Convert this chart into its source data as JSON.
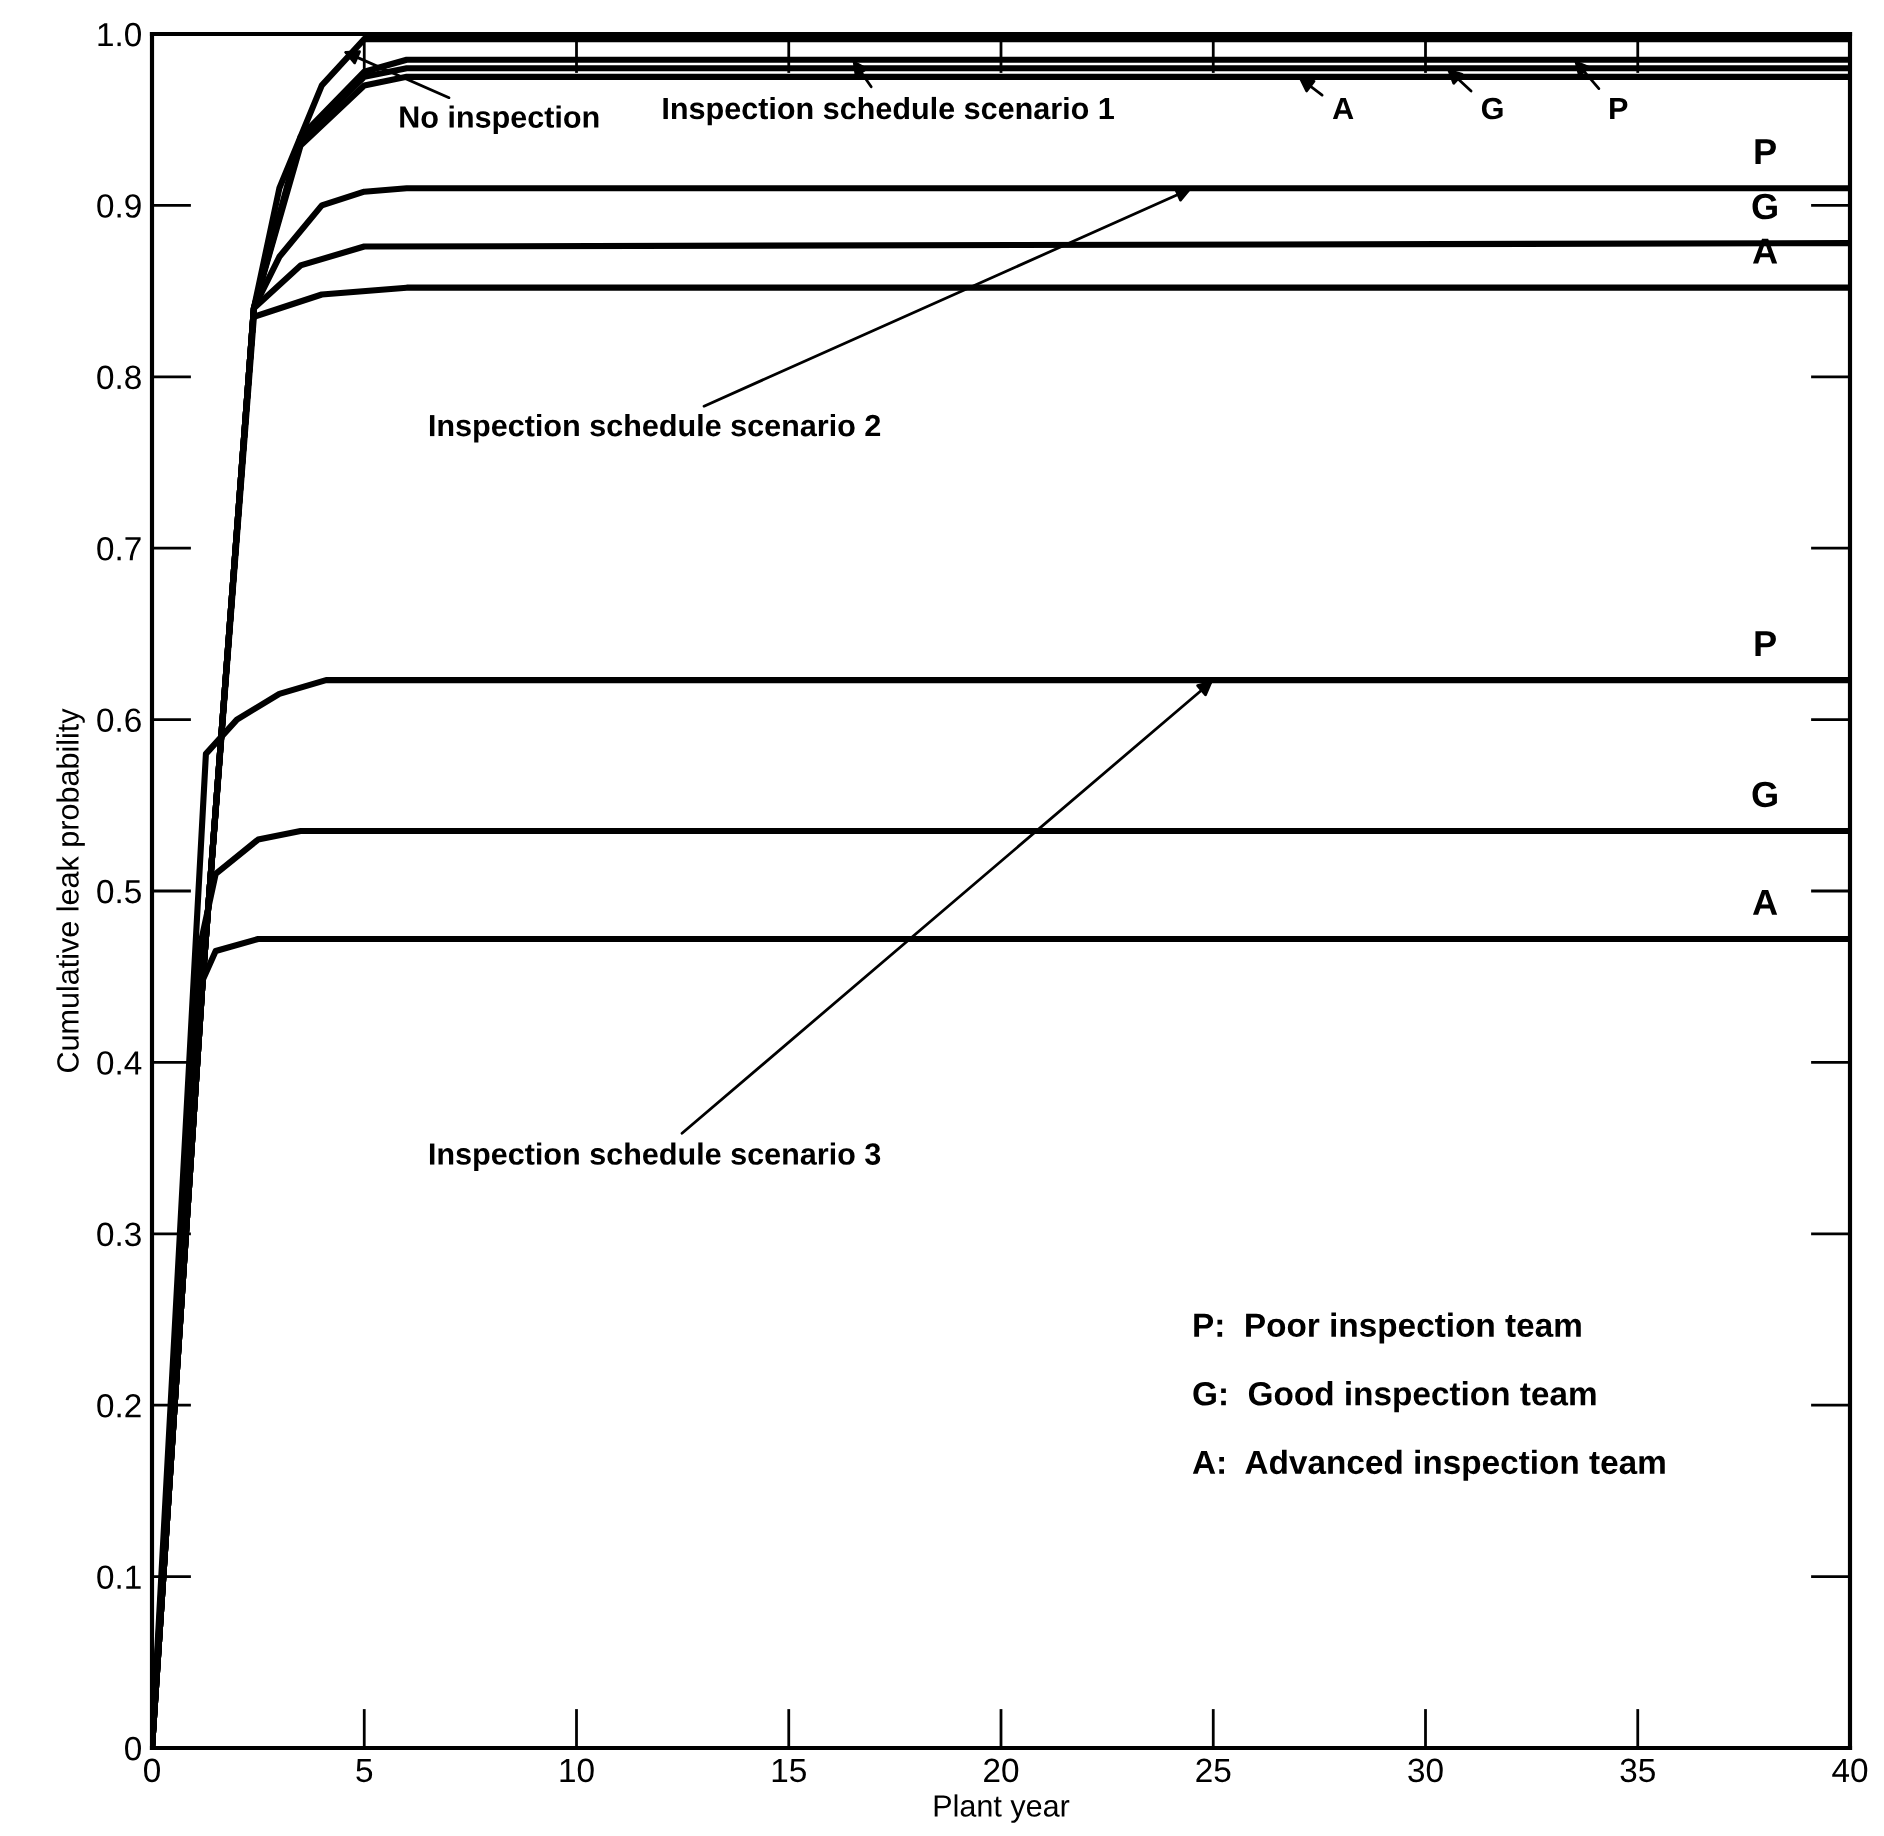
{
  "chart_data": {
    "type": "line",
    "xlabel": "Plant year",
    "ylabel": "Cumulative leak probability",
    "xlim": [
      0,
      40
    ],
    "ylim": [
      0,
      1.0
    ],
    "xticks": [
      0,
      5,
      10,
      15,
      20,
      25,
      30,
      35,
      40
    ],
    "yticks": [
      0,
      {
        "value": 0.1,
        "label": "0.1"
      },
      {
        "value": 0.2,
        "label": "0.2"
      },
      {
        "value": 0.3,
        "label": "0.3"
      },
      {
        "value": 0.4,
        "label": "0.4"
      },
      {
        "value": 0.5,
        "label": "0.5"
      },
      {
        "value": 0.6,
        "label": "0.6"
      },
      {
        "value": 0.7,
        "label": "0.7"
      },
      {
        "value": 0.8,
        "label": "0.8"
      },
      {
        "value": 0.9,
        "label": "0.9"
      },
      {
        "value": 1.0,
        "label": "1.0"
      }
    ],
    "grid": false,
    "marker": "none",
    "line_style": "solid",
    "series": [
      {
        "color": "#000000",
        "x": [
          0,
          1.2,
          2.4,
          3,
          4,
          5,
          40
        ],
        "values": [
          0,
          0.45,
          0.84,
          0.91,
          0.97,
          0.997,
          0.997
        ]
      },
      {
        "color": "#000000",
        "x": [
          0,
          1.2,
          2.4,
          3.5,
          5,
          6,
          40
        ],
        "values": [
          0,
          0.45,
          0.84,
          0.94,
          0.978,
          0.985,
          0.985
        ]
      },
      {
        "color": "#000000",
        "x": [
          0,
          1.2,
          2.4,
          3.5,
          5,
          6,
          40
        ],
        "values": [
          0,
          0.45,
          0.84,
          0.938,
          0.975,
          0.98,
          0.98
        ]
      },
      {
        "color": "#000000",
        "x": [
          0,
          1.2,
          2.4,
          3.5,
          5,
          6,
          40
        ],
        "values": [
          0,
          0.45,
          0.84,
          0.935,
          0.97,
          0.975,
          0.975
        ]
      },
      {
        "color": "#000000",
        "x": [
          0,
          1.2,
          2.4,
          3,
          4,
          5,
          6,
          40
        ],
        "values": [
          0,
          0.45,
          0.84,
          0.87,
          0.9,
          0.908,
          0.91,
          0.91
        ]
      },
      {
        "color": "#000000",
        "x": [
          0,
          1.2,
          2.4,
          3.5,
          5,
          40
        ],
        "values": [
          0,
          0.45,
          0.84,
          0.865,
          0.876,
          0.878
        ]
      },
      {
        "color": "#000000",
        "x": [
          0,
          1.2,
          2.4,
          4,
          6,
          40
        ],
        "values": [
          0,
          0.45,
          0.835,
          0.848,
          0.852,
          0.852
        ]
      },
      {
        "color": "#000000",
        "x": [
          0,
          1.27,
          2,
          3,
          4.1,
          40
        ],
        "values": [
          0,
          0.58,
          0.6,
          0.615,
          0.623,
          0.623
        ]
      },
      {
        "color": "#000000",
        "x": [
          0,
          1.15,
          1.5,
          2.5,
          3.5,
          40
        ],
        "values": [
          0,
          0.47,
          0.51,
          0.53,
          0.535,
          0.535
        ]
      },
      {
        "color": "#000000",
        "x": [
          0,
          1.05,
          1.5,
          2.5,
          40
        ],
        "values": [
          0,
          0.44,
          0.465,
          0.472,
          0.472
        ]
      }
    ],
    "annotations": [
      {
        "text": "No inspection",
        "x": 4.5,
        "y": 0.99
      },
      {
        "text": "Inspection schedule scenario 1",
        "x": 16.5,
        "y": 0.985
      },
      {
        "text": "A",
        "x": 27,
        "y": 0.975
      },
      {
        "text": "G",
        "x": 30.5,
        "y": 0.98
      },
      {
        "text": "P",
        "x": 33.5,
        "y": 0.985
      },
      {
        "text": "P",
        "x": 38,
        "y": 0.91
      },
      {
        "text": "G",
        "x": 38,
        "y": 0.878
      },
      {
        "text": "A",
        "x": 38,
        "y": 0.852
      },
      {
        "text": "P",
        "x": 38,
        "y": 0.623
      },
      {
        "text": "G",
        "x": 38,
        "y": 0.535
      },
      {
        "text": "A",
        "x": 38,
        "y": 0.472
      },
      {
        "text": "Inspection schedule scenario 2",
        "x": 24.5,
        "y": 0.91
      },
      {
        "text": "Inspection schedule scenario 3",
        "x": 25,
        "y": 0.623
      },
      "P:  Poor inspection team",
      "G:  Good inspection team",
      "A:  Advanced inspection team"
    ]
  }
}
